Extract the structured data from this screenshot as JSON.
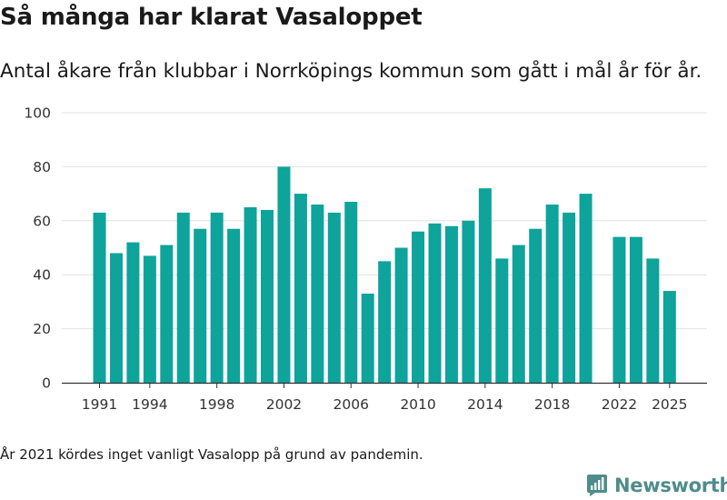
{
  "header": {
    "title": "Så många har klarat Vasaloppet",
    "subtitle": "Antal åkare från klubbar i Norrköpings kommun som gått i mål år för år."
  },
  "footer": {
    "note": "År 2021 kördes inget vanligt Vasalopp på grund av pandemin.",
    "brand": "Newsworthy"
  },
  "colors": {
    "bar": "#0ea39b",
    "grid": "#e2e2e2",
    "axis": "#333333",
    "brand": "#4f8c8c"
  },
  "chart_data": {
    "type": "bar",
    "title": "Så många har klarat Vasaloppet",
    "subtitle": "Antal åkare från klubbar i Norrköpings kommun som gått i mål år för år.",
    "xlabel": "",
    "ylabel": "",
    "ylim": [
      0,
      100
    ],
    "yticks": [
      0,
      20,
      40,
      60,
      80,
      100
    ],
    "xticks": [
      1991,
      1994,
      1998,
      2002,
      2006,
      2010,
      2014,
      2018,
      2022,
      2025
    ],
    "grid": true,
    "categories": [
      1991,
      1992,
      1993,
      1994,
      1995,
      1996,
      1997,
      1998,
      1999,
      2000,
      2001,
      2002,
      2003,
      2004,
      2005,
      2006,
      2007,
      2008,
      2009,
      2010,
      2011,
      2012,
      2013,
      2014,
      2015,
      2016,
      2017,
      2018,
      2019,
      2020,
      2021,
      2022,
      2023,
      2024,
      2025
    ],
    "values": [
      63,
      48,
      52,
      47,
      51,
      63,
      57,
      63,
      57,
      65,
      64,
      80,
      70,
      66,
      63,
      67,
      33,
      45,
      50,
      56,
      59,
      58,
      60,
      72,
      46,
      51,
      57,
      66,
      63,
      70,
      null,
      54,
      54,
      46,
      34
    ]
  }
}
